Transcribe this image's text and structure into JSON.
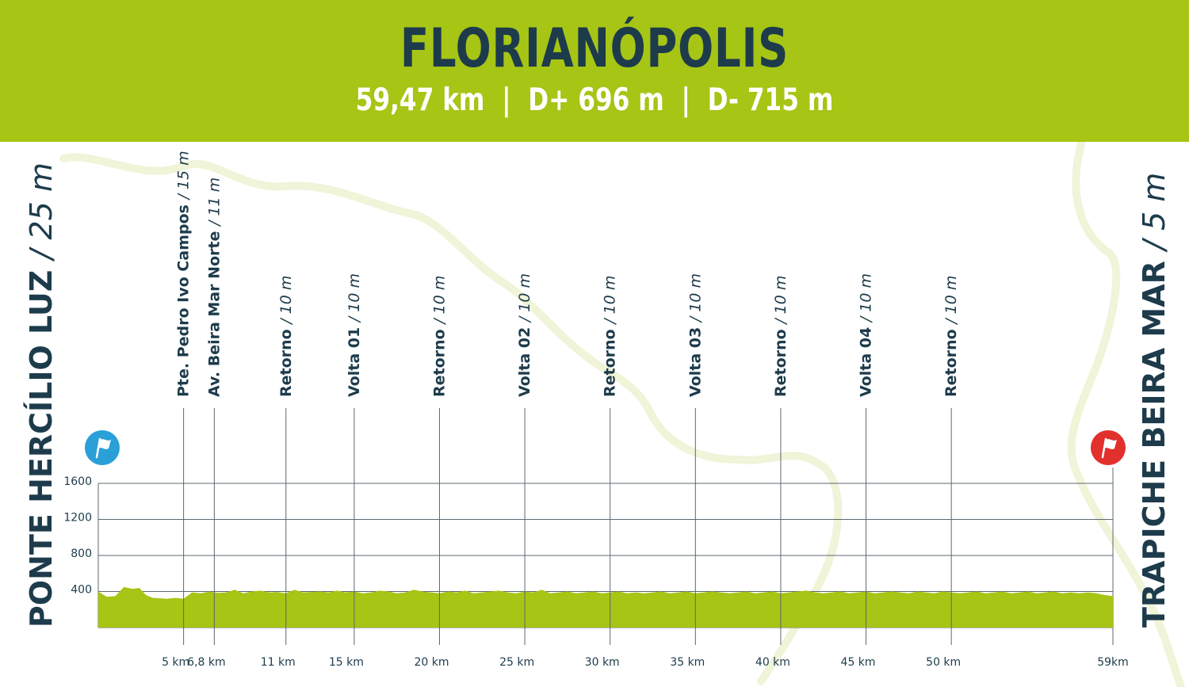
{
  "header": {
    "title": "FLORIANÓPOLIS",
    "distance": "59,47 km",
    "elevation_gain": "D+ 696 m",
    "elevation_loss": "D- 715 m",
    "separator": "|"
  },
  "start": {
    "name": "PONTE HERCÍLIO LUZ",
    "elevation": "/ 25 m",
    "flag_color": "#2a9fd8"
  },
  "finish": {
    "name": "TRAPICHE BEIRA MAR",
    "elevation": "/ 5 m",
    "flag_color": "#e2302d"
  },
  "colors": {
    "header_bg": "#a6c515",
    "area_fill": "#a6c515",
    "text_dark": "#1d3b4b",
    "grid": "#5d6870",
    "map_outline": "#f0f4d8"
  },
  "chart_data": {
    "type": "area",
    "xlabel": "",
    "ylabel": "",
    "ylim": [
      0,
      1600
    ],
    "xlim": [
      0,
      59.47
    ],
    "yticks": [
      400,
      800,
      1200,
      1600
    ],
    "grid": true,
    "markers": [
      {
        "km": 5,
        "tick": "5 km",
        "name": "Pte. Pedro Ivo Campos",
        "elev": "/ 15 m"
      },
      {
        "km": 6.8,
        "tick": "6,8 km",
        "name": "Av. Beira Mar Norte",
        "elev": "/ 11 m"
      },
      {
        "km": 11,
        "tick": "11 km",
        "name": "Retorno",
        "elev": "/ 10 m"
      },
      {
        "km": 15,
        "tick": "15 km",
        "name": "Volta 01",
        "elev": "/ 10 m"
      },
      {
        "km": 20,
        "tick": "20 km",
        "name": "Retorno",
        "elev": "/ 10 m"
      },
      {
        "km": 25,
        "tick": "25 km",
        "name": "Volta 02",
        "elev": "/ 10 m"
      },
      {
        "km": 30,
        "tick": "30 km",
        "name": "Retorno",
        "elev": "/ 10 m"
      },
      {
        "km": 35,
        "tick": "35 km",
        "name": "Volta 03",
        "elev": "/ 10 m"
      },
      {
        "km": 40,
        "tick": "40 km",
        "name": "Retorno",
        "elev": "/ 10 m"
      },
      {
        "km": 45,
        "tick": "45 km",
        "name": "Volta 04",
        "elev": "/ 10 m"
      },
      {
        "km": 50,
        "tick": "50 km",
        "name": "Retorno",
        "elev": "/ 10 m"
      }
    ],
    "end_tick": "59km",
    "series": [
      {
        "x": [
          0,
          0.5,
          1,
          1.5,
          2,
          2.4,
          2.8,
          3.2,
          3.6,
          4,
          4.5,
          5,
          5.5,
          6,
          6.5,
          7,
          7.5,
          8,
          8.5,
          9,
          9.5,
          10,
          10.5,
          11,
          11.5,
          12,
          12.5,
          13,
          13.5,
          14,
          14.5,
          15,
          15.5,
          16,
          16.5,
          17,
          17.5,
          18,
          18.5,
          19,
          19.5,
          20,
          20.5,
          21,
          21.5,
          22,
          22.5,
          23,
          23.5,
          24,
          24.5,
          25,
          25.5,
          26,
          26.5,
          27,
          27.5,
          28,
          28.5,
          29,
          29.5,
          30,
          30.5,
          31,
          31.5,
          32,
          32.5,
          33,
          33.5,
          34,
          34.5,
          35,
          35.5,
          36,
          36.5,
          37,
          37.5,
          38,
          38.5,
          39,
          39.5,
          40,
          40.5,
          41,
          41.5,
          42,
          42.5,
          43,
          43.5,
          44,
          44.5,
          45,
          45.5,
          46,
          46.5,
          47,
          47.5,
          48,
          48.5,
          49,
          49.5,
          50,
          50.5,
          51,
          51.5,
          52,
          52.5,
          53,
          53.5,
          54,
          54.5,
          55,
          55.5,
          56,
          56.5,
          57,
          57.5,
          58,
          58.5,
          59,
          59.47
        ],
        "y": [
          400,
          340,
          350,
          450,
          430,
          440,
          360,
          330,
          325,
          320,
          330,
          320,
          390,
          380,
          400,
          385,
          390,
          420,
          380,
          400,
          410,
          390,
          395,
          380,
          420,
          390,
          395,
          400,
          390,
          410,
          390,
          400,
          380,
          390,
          410,
          400,
          380,
          390,
          420,
          400,
          390,
          380,
          400,
          390,
          410,
          380,
          390,
          400,
          410,
          390,
          380,
          400,
          390,
          420,
          380,
          390,
          400,
          380,
          390,
          400,
          380,
          390,
          400,
          380,
          390,
          380,
          390,
          400,
          380,
          390,
          400,
          380,
          390,
          400,
          390,
          380,
          390,
          400,
          380,
          390,
          400,
          380,
          390,
          400,
          410,
          390,
          380,
          390,
          400,
          380,
          390,
          400,
          380,
          390,
          400,
          390,
          380,
          400,
          390,
          380,
          400,
          390,
          380,
          390,
          400,
          380,
          390,
          400,
          380,
          390,
          400,
          380,
          390,
          400,
          380,
          390,
          380,
          390,
          380,
          360,
          350
        ]
      }
    ]
  }
}
